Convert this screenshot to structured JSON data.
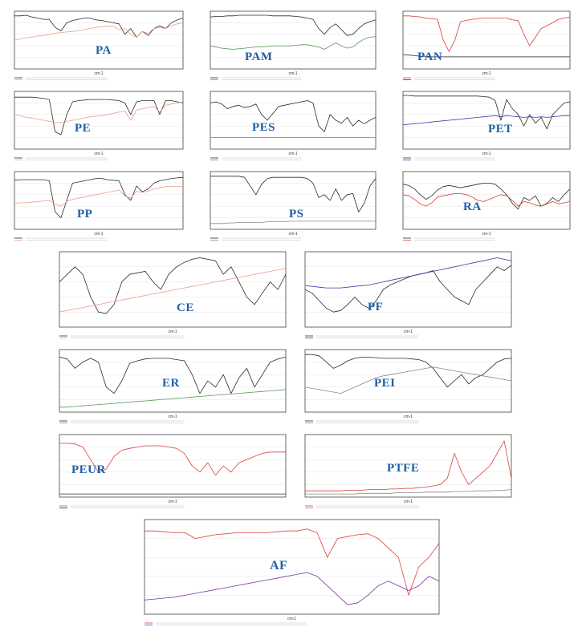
{
  "colors": {
    "black": "#2b2b2b",
    "red": "#d9413a",
    "salmon": "#e8a08c",
    "green": "#5c9a5c",
    "blue": "#3a3aa8",
    "purple": "#7a3aa0",
    "grey": "#8a8a8a"
  },
  "x_axis_label": "cm-1",
  "chart_data": [
    {
      "type": "line",
      "label": "PA",
      "series": [
        {
          "color": "black",
          "values": [
            92,
            92,
            93,
            90,
            88,
            86,
            86,
            72,
            66,
            80,
            84,
            86,
            88,
            88,
            85,
            84,
            82,
            80,
            78,
            60,
            70,
            55,
            65,
            58,
            70,
            75,
            70,
            80,
            85,
            88
          ]
        },
        {
          "color": "salmon",
          "values": [
            50,
            52,
            54,
            55,
            57,
            58,
            60,
            62,
            63,
            64,
            65,
            66,
            68,
            70,
            72,
            73,
            74,
            74,
            68,
            70,
            60,
            55,
            65,
            62,
            70,
            72,
            70,
            75,
            78,
            80
          ]
        }
      ]
    },
    {
      "type": "line",
      "label": "PAM",
      "series": [
        {
          "color": "black",
          "values": [
            90,
            91,
            91,
            92,
            92,
            93,
            93,
            93,
            93,
            93,
            93,
            92,
            92,
            92,
            92,
            91,
            90,
            88,
            86,
            70,
            60,
            72,
            78,
            68,
            58,
            60,
            70,
            78,
            82,
            85
          ]
        },
        {
          "color": "green",
          "values": [
            40,
            38,
            36,
            35,
            34,
            35,
            36,
            37,
            38,
            38,
            39,
            40,
            40,
            40,
            40,
            41,
            42,
            42,
            40,
            38,
            34,
            40,
            45,
            40,
            36,
            38,
            46,
            52,
            55,
            56
          ]
        }
      ]
    },
    {
      "type": "line",
      "label": "PAN",
      "series": [
        {
          "color": "red",
          "values": [
            92,
            92,
            91,
            90,
            88,
            87,
            86,
            50,
            30,
            50,
            82,
            84,
            86,
            87,
            88,
            88,
            88,
            88,
            88,
            85,
            84,
            60,
            40,
            55,
            70,
            75,
            80,
            86,
            88,
            90
          ]
        },
        {
          "color": "black",
          "values": [
            25,
            24,
            23,
            22,
            22,
            21,
            21,
            21,
            21,
            21,
            21,
            21,
            21,
            21,
            21,
            21,
            21,
            21,
            21,
            21,
            21,
            21,
            21,
            21,
            21,
            21,
            21,
            21,
            21,
            21
          ]
        }
      ]
    },
    {
      "type": "line",
      "label": "PE",
      "series": [
        {
          "color": "black",
          "values": [
            90,
            90,
            90,
            90,
            89,
            88,
            86,
            30,
            25,
            60,
            82,
            84,
            85,
            86,
            86,
            86,
            86,
            85,
            84,
            80,
            60,
            82,
            84,
            84,
            84,
            60,
            84,
            84,
            82,
            80
          ]
        },
        {
          "color": "salmon",
          "values": [
            60,
            58,
            55,
            54,
            52,
            50,
            48,
            46,
            46,
            48,
            50,
            52,
            54,
            56,
            57,
            58,
            60,
            62,
            64,
            66,
            50,
            68,
            70,
            72,
            74,
            64,
            76,
            78,
            80,
            82
          ]
        }
      ]
    },
    {
      "type": "line",
      "label": "PES",
      "series": [
        {
          "color": "black",
          "values": [
            80,
            82,
            78,
            70,
            74,
            76,
            72,
            74,
            78,
            60,
            50,
            62,
            74,
            76,
            78,
            80,
            82,
            84,
            80,
            40,
            30,
            60,
            50,
            45,
            55,
            40,
            50,
            44,
            50,
            55
          ]
        },
        {
          "color": "green",
          "values": [
            20,
            20,
            20,
            20,
            20,
            20,
            20,
            20,
            20,
            20,
            20,
            20,
            20,
            20,
            20,
            20,
            20,
            20,
            20,
            20,
            20,
            20,
            20,
            20,
            20,
            20,
            20,
            20,
            20,
            20
          ]
        }
      ]
    },
    {
      "type": "line",
      "label": "PET",
      "series": [
        {
          "color": "black",
          "values": [
            93,
            93,
            92,
            92,
            92,
            92,
            92,
            92,
            92,
            92,
            92,
            92,
            92,
            92,
            91,
            90,
            84,
            50,
            86,
            70,
            60,
            40,
            60,
            45,
            55,
            35,
            60,
            70,
            80,
            82
          ]
        },
        {
          "color": "blue",
          "values": [
            42,
            43,
            44,
            45,
            46,
            47,
            48,
            49,
            50,
            51,
            52,
            53,
            54,
            55,
            56,
            57,
            58,
            56,
            58,
            57,
            56,
            55,
            56,
            55,
            56,
            55,
            56,
            57,
            58,
            58
          ]
        }
      ]
    },
    {
      "type": "line",
      "label": "PP",
      "series": [
        {
          "color": "black",
          "values": [
            85,
            86,
            86,
            86,
            86,
            86,
            84,
            30,
            20,
            50,
            80,
            82,
            84,
            86,
            88,
            88,
            86,
            85,
            84,
            60,
            50,
            75,
            65,
            70,
            80,
            84,
            86,
            88,
            89,
            90
          ]
        },
        {
          "color": "salmon",
          "values": [
            45,
            46,
            46,
            47,
            48,
            49,
            50,
            44,
            40,
            48,
            52,
            54,
            56,
            58,
            60,
            62,
            64,
            66,
            68,
            58,
            54,
            66,
            64,
            66,
            70,
            72,
            74,
            74,
            74,
            74
          ]
        }
      ]
    },
    {
      "type": "line",
      "label": "PS",
      "series": [
        {
          "color": "black",
          "values": [
            92,
            92,
            92,
            92,
            92,
            92,
            90,
            75,
            60,
            78,
            88,
            90,
            90,
            90,
            90,
            90,
            90,
            88,
            80,
            55,
            60,
            50,
            70,
            50,
            60,
            62,
            30,
            45,
            75,
            88
          ]
        },
        {
          "color": "grey",
          "values": [
            10,
            10,
            10,
            11,
            11,
            12,
            12,
            12,
            12,
            12,
            13,
            13,
            13,
            13,
            14,
            14,
            14,
            14,
            14,
            14,
            14,
            14,
            14,
            14,
            14,
            14,
            14,
            14,
            14,
            14
          ]
        }
      ]
    },
    {
      "type": "line",
      "label": "RA",
      "series": [
        {
          "color": "black",
          "values": [
            78,
            76,
            70,
            60,
            52,
            58,
            68,
            74,
            76,
            74,
            72,
            74,
            76,
            78,
            80,
            80,
            78,
            70,
            60,
            45,
            35,
            55,
            50,
            58,
            40,
            45,
            55,
            48,
            60,
            70
          ]
        },
        {
          "color": "red",
          "values": [
            60,
            58,
            52,
            44,
            40,
            46,
            56,
            58,
            60,
            62,
            62,
            60,
            56,
            50,
            48,
            52,
            56,
            60,
            58,
            50,
            40,
            48,
            46,
            42,
            40,
            44,
            48,
            44,
            46,
            48
          ]
        }
      ]
    },
    {
      "type": "line",
      "label": "CE",
      "series": [
        {
          "color": "black",
          "values": [
            60,
            70,
            80,
            70,
            40,
            20,
            18,
            30,
            60,
            70,
            72,
            74,
            60,
            50,
            70,
            80,
            86,
            90,
            92,
            90,
            88,
            70,
            80,
            60,
            40,
            30,
            45,
            60,
            50,
            70
          ]
        },
        {
          "color": "salmon",
          "values": [
            20,
            22,
            24,
            26,
            28,
            30,
            32,
            34,
            36,
            38,
            40,
            42,
            44,
            46,
            48,
            50,
            52,
            54,
            56,
            58,
            60,
            62,
            64,
            66,
            68,
            70,
            72,
            74,
            76,
            78
          ]
        }
      ]
    },
    {
      "type": "line",
      "label": "PF",
      "series": [
        {
          "color": "black",
          "values": [
            50,
            45,
            35,
            25,
            20,
            22,
            30,
            40,
            30,
            25,
            35,
            50,
            56,
            60,
            64,
            68,
            70,
            72,
            75,
            60,
            50,
            40,
            35,
            30,
            50,
            60,
            70,
            80,
            75,
            82
          ]
        },
        {
          "color": "blue",
          "values": [
            55,
            54,
            53,
            52,
            52,
            52,
            53,
            54,
            55,
            56,
            58,
            60,
            62,
            64,
            66,
            68,
            70,
            72,
            74,
            76,
            78,
            80,
            82,
            84,
            86,
            88,
            90,
            92,
            90,
            88
          ]
        }
      ]
    },
    {
      "type": "line",
      "label": "ER",
      "series": [
        {
          "color": "black",
          "values": [
            88,
            85,
            70,
            80,
            86,
            80,
            40,
            30,
            50,
            78,
            82,
            85,
            86,
            86,
            86,
            84,
            82,
            60,
            30,
            50,
            40,
            60,
            30,
            55,
            70,
            40,
            60,
            80,
            85,
            88
          ]
        },
        {
          "color": "green",
          "values": [
            8,
            8,
            9,
            10,
            11,
            12,
            13,
            14,
            15,
            16,
            17,
            18,
            19,
            20,
            21,
            22,
            23,
            24,
            25,
            26,
            27,
            28,
            29,
            30,
            31,
            32,
            33,
            34,
            35,
            36
          ]
        }
      ]
    },
    {
      "type": "line",
      "label": "PEI",
      "series": [
        {
          "color": "black",
          "values": [
            92,
            92,
            90,
            80,
            70,
            75,
            82,
            86,
            88,
            88,
            87,
            86,
            86,
            86,
            86,
            85,
            84,
            80,
            70,
            55,
            40,
            50,
            60,
            45,
            55,
            60,
            70,
            80,
            85,
            86
          ]
        },
        {
          "color": "grey",
          "values": [
            40,
            38,
            36,
            34,
            32,
            30,
            35,
            40,
            45,
            50,
            55,
            58,
            60,
            62,
            64,
            66,
            68,
            70,
            72,
            70,
            68,
            66,
            64,
            62,
            60,
            58,
            56,
            54,
            52,
            50
          ]
        }
      ]
    },
    {
      "type": "line",
      "label": "PEUR",
      "series": [
        {
          "color": "red",
          "values": [
            86,
            86,
            85,
            80,
            60,
            40,
            45,
            65,
            75,
            78,
            80,
            82,
            82,
            82,
            80,
            78,
            70,
            50,
            40,
            55,
            35,
            50,
            40,
            55,
            60,
            65,
            70,
            72,
            72,
            72
          ]
        },
        {
          "color": "black",
          "values": [
            5,
            5,
            5,
            5,
            5,
            5,
            5,
            5,
            5,
            5,
            5,
            5,
            5,
            5,
            5,
            5,
            5,
            5,
            5,
            5,
            5,
            5,
            5,
            5,
            5,
            5,
            5,
            5,
            5,
            5
          ]
        }
      ]
    },
    {
      "type": "line",
      "label": "PTFE",
      "series": [
        {
          "color": "red",
          "values": [
            10,
            10,
            10,
            10,
            10,
            10,
            11,
            11,
            11,
            12,
            12,
            12,
            13,
            13,
            14,
            14,
            15,
            16,
            18,
            20,
            30,
            70,
            40,
            20,
            30,
            40,
            50,
            70,
            90,
            30
          ]
        },
        {
          "color": "grey",
          "values": [
            5,
            5,
            5,
            5,
            5,
            5,
            5,
            5,
            6,
            6,
            6,
            6,
            6,
            7,
            7,
            7,
            7,
            8,
            8,
            8,
            8,
            9,
            9,
            9,
            10,
            10,
            10,
            11,
            11,
            12
          ]
        }
      ]
    },
    {
      "type": "line",
      "label": "AF",
      "series": [
        {
          "color": "red",
          "values": [
            88,
            88,
            87,
            86,
            86,
            80,
            82,
            84,
            85,
            86,
            86,
            86,
            86,
            87,
            88,
            88,
            90,
            86,
            60,
            80,
            82,
            84,
            85,
            80,
            70,
            60,
            20,
            50,
            60,
            75
          ]
        },
        {
          "color": "purple",
          "values": [
            15,
            16,
            17,
            18,
            20,
            22,
            24,
            26,
            28,
            30,
            32,
            34,
            36,
            38,
            40,
            42,
            44,
            40,
            30,
            20,
            10,
            12,
            20,
            30,
            35,
            30,
            25,
            30,
            40,
            35
          ]
        }
      ]
    }
  ]
}
